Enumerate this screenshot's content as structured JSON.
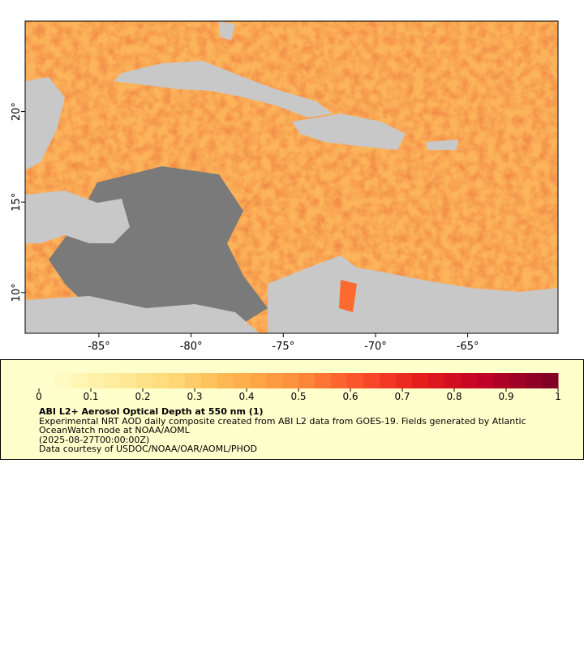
{
  "map": {
    "xlim": [
      -89,
      -60.1
    ],
    "ylim": [
      7.75,
      25
    ],
    "xticks": [
      {
        "value": -85,
        "label": "-85°"
      },
      {
        "value": -80,
        "label": "-80°"
      },
      {
        "value": -75,
        "label": "-75°"
      },
      {
        "value": -70,
        "label": "-70°"
      },
      {
        "value": -65,
        "label": "-65°"
      }
    ],
    "yticks": [
      {
        "value": 10,
        "label": "10°"
      },
      {
        "value": 15,
        "label": "15°"
      },
      {
        "value": 20,
        "label": "20°"
      }
    ]
  },
  "legend": {
    "colorbar": {
      "range": [
        0,
        1
      ],
      "ticks": [
        0,
        0.1,
        0.2,
        0.3,
        0.4,
        0.5,
        0.6,
        0.7,
        0.8,
        0.9,
        1
      ],
      "colors": [
        "#ffffcc",
        "#ffeda0",
        "#fed976",
        "#feb24c",
        "#fd8d3c",
        "#fc4e2a",
        "#e31a1c",
        "#bd0026",
        "#800026"
      ]
    },
    "title": "ABI L2+ Aerosol Optical Depth at 550 nm (1)",
    "lines": [
      "Experimental NRT AOD daily composite created from ABI L2 data from GOES-19. Fields generated by Atlantic",
      "OceanWatch node at NOAA/AOML",
      "(2025-08-27T00:00:00Z)",
      "Data courtesy of USDOC/NOAA/OAR/AOML/PHOD"
    ]
  }
}
